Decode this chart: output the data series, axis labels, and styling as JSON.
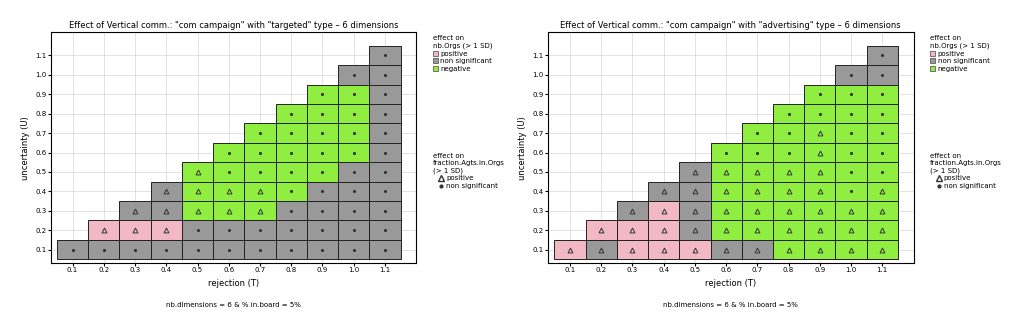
{
  "panels": [
    {
      "title": "Effect of Vertical comm.: \"com campaign\" with \"targeted\" type – 6 dimensions",
      "cells": [
        {
          "T": 0.1,
          "U": 0.1,
          "color": "gray",
          "marker": "dot"
        },
        {
          "T": 0.2,
          "U": 0.1,
          "color": "gray",
          "marker": "dot"
        },
        {
          "T": 0.2,
          "U": 0.2,
          "color": "pink",
          "marker": "triangle"
        },
        {
          "T": 0.3,
          "U": 0.1,
          "color": "gray",
          "marker": "dot"
        },
        {
          "T": 0.3,
          "U": 0.2,
          "color": "pink",
          "marker": "triangle"
        },
        {
          "T": 0.3,
          "U": 0.3,
          "color": "gray",
          "marker": "triangle"
        },
        {
          "T": 0.4,
          "U": 0.1,
          "color": "gray",
          "marker": "dot"
        },
        {
          "T": 0.4,
          "U": 0.2,
          "color": "pink",
          "marker": "triangle"
        },
        {
          "T": 0.4,
          "U": 0.3,
          "color": "gray",
          "marker": "triangle"
        },
        {
          "T": 0.4,
          "U": 0.4,
          "color": "gray",
          "marker": "triangle"
        },
        {
          "T": 0.5,
          "U": 0.1,
          "color": "gray",
          "marker": "dot"
        },
        {
          "T": 0.5,
          "U": 0.2,
          "color": "gray",
          "marker": "dot"
        },
        {
          "T": 0.5,
          "U": 0.3,
          "color": "green",
          "marker": "triangle"
        },
        {
          "T": 0.5,
          "U": 0.4,
          "color": "green",
          "marker": "triangle"
        },
        {
          "T": 0.5,
          "U": 0.5,
          "color": "green",
          "marker": "triangle"
        },
        {
          "T": 0.6,
          "U": 0.1,
          "color": "gray",
          "marker": "dot"
        },
        {
          "T": 0.6,
          "U": 0.2,
          "color": "gray",
          "marker": "dot"
        },
        {
          "T": 0.6,
          "U": 0.3,
          "color": "green",
          "marker": "triangle"
        },
        {
          "T": 0.6,
          "U": 0.4,
          "color": "green",
          "marker": "triangle"
        },
        {
          "T": 0.6,
          "U": 0.5,
          "color": "green",
          "marker": "dot"
        },
        {
          "T": 0.6,
          "U": 0.6,
          "color": "green",
          "marker": "dot"
        },
        {
          "T": 0.7,
          "U": 0.1,
          "color": "gray",
          "marker": "dot"
        },
        {
          "T": 0.7,
          "U": 0.2,
          "color": "gray",
          "marker": "dot"
        },
        {
          "T": 0.7,
          "U": 0.3,
          "color": "green",
          "marker": "triangle"
        },
        {
          "T": 0.7,
          "U": 0.4,
          "color": "green",
          "marker": "triangle"
        },
        {
          "T": 0.7,
          "U": 0.5,
          "color": "green",
          "marker": "dot"
        },
        {
          "T": 0.7,
          "U": 0.6,
          "color": "green",
          "marker": "dot"
        },
        {
          "T": 0.7,
          "U": 0.7,
          "color": "green",
          "marker": "dot"
        },
        {
          "T": 0.8,
          "U": 0.1,
          "color": "gray",
          "marker": "dot"
        },
        {
          "T": 0.8,
          "U": 0.2,
          "color": "gray",
          "marker": "dot"
        },
        {
          "T": 0.8,
          "U": 0.3,
          "color": "gray",
          "marker": "dot"
        },
        {
          "T": 0.8,
          "U": 0.4,
          "color": "green",
          "marker": "dot"
        },
        {
          "T": 0.8,
          "U": 0.5,
          "color": "green",
          "marker": "dot"
        },
        {
          "T": 0.8,
          "U": 0.6,
          "color": "green",
          "marker": "dot"
        },
        {
          "T": 0.8,
          "U": 0.7,
          "color": "green",
          "marker": "dot"
        },
        {
          "T": 0.8,
          "U": 0.8,
          "color": "green",
          "marker": "dot"
        },
        {
          "T": 0.9,
          "U": 0.1,
          "color": "gray",
          "marker": "dot"
        },
        {
          "T": 0.9,
          "U": 0.2,
          "color": "gray",
          "marker": "dot"
        },
        {
          "T": 0.9,
          "U": 0.3,
          "color": "gray",
          "marker": "dot"
        },
        {
          "T": 0.9,
          "U": 0.4,
          "color": "gray",
          "marker": "dot"
        },
        {
          "T": 0.9,
          "U": 0.5,
          "color": "green",
          "marker": "dot"
        },
        {
          "T": 0.9,
          "U": 0.6,
          "color": "green",
          "marker": "dot"
        },
        {
          "T": 0.9,
          "U": 0.7,
          "color": "green",
          "marker": "dot"
        },
        {
          "T": 0.9,
          "U": 0.8,
          "color": "green",
          "marker": "dot"
        },
        {
          "T": 0.9,
          "U": 0.9,
          "color": "green",
          "marker": "dot"
        },
        {
          "T": 1.0,
          "U": 0.1,
          "color": "gray",
          "marker": "dot"
        },
        {
          "T": 1.0,
          "U": 0.2,
          "color": "gray",
          "marker": "dot"
        },
        {
          "T": 1.0,
          "U": 0.3,
          "color": "gray",
          "marker": "dot"
        },
        {
          "T": 1.0,
          "U": 0.4,
          "color": "gray",
          "marker": "dot"
        },
        {
          "T": 1.0,
          "U": 0.5,
          "color": "gray",
          "marker": "dot"
        },
        {
          "T": 1.0,
          "U": 0.6,
          "color": "green",
          "marker": "dot"
        },
        {
          "T": 1.0,
          "U": 0.7,
          "color": "green",
          "marker": "dot"
        },
        {
          "T": 1.0,
          "U": 0.8,
          "color": "green",
          "marker": "dot"
        },
        {
          "T": 1.0,
          "U": 0.9,
          "color": "green",
          "marker": "dot"
        },
        {
          "T": 1.0,
          "U": 1.0,
          "color": "gray",
          "marker": "dot"
        },
        {
          "T": 1.1,
          "U": 0.1,
          "color": "gray",
          "marker": "dot"
        },
        {
          "T": 1.1,
          "U": 0.2,
          "color": "gray",
          "marker": "dot"
        },
        {
          "T": 1.1,
          "U": 0.3,
          "color": "gray",
          "marker": "dot"
        },
        {
          "T": 1.1,
          "U": 0.4,
          "color": "gray",
          "marker": "dot"
        },
        {
          "T": 1.1,
          "U": 0.5,
          "color": "gray",
          "marker": "dot"
        },
        {
          "T": 1.1,
          "U": 0.6,
          "color": "gray",
          "marker": "dot"
        },
        {
          "T": 1.1,
          "U": 0.7,
          "color": "gray",
          "marker": "dot"
        },
        {
          "T": 1.1,
          "U": 0.8,
          "color": "gray",
          "marker": "dot"
        },
        {
          "T": 1.1,
          "U": 0.9,
          "color": "gray",
          "marker": "dot"
        },
        {
          "T": 1.1,
          "U": 1.0,
          "color": "gray",
          "marker": "dot"
        },
        {
          "T": 1.1,
          "U": 1.1,
          "color": "gray",
          "marker": "dot"
        }
      ]
    },
    {
      "title": "Effect of Vertical comm.: \"com campaign\" with \"advertising\" type – 6 dimensions",
      "cells": [
        {
          "T": 0.1,
          "U": 0.1,
          "color": "pink",
          "marker": "triangle"
        },
        {
          "T": 0.2,
          "U": 0.1,
          "color": "gray",
          "marker": "triangle"
        },
        {
          "T": 0.2,
          "U": 0.2,
          "color": "pink",
          "marker": "triangle"
        },
        {
          "T": 0.3,
          "U": 0.1,
          "color": "pink",
          "marker": "triangle"
        },
        {
          "T": 0.3,
          "U": 0.2,
          "color": "pink",
          "marker": "triangle"
        },
        {
          "T": 0.3,
          "U": 0.3,
          "color": "gray",
          "marker": "triangle"
        },
        {
          "T": 0.4,
          "U": 0.1,
          "color": "pink",
          "marker": "triangle"
        },
        {
          "T": 0.4,
          "U": 0.2,
          "color": "pink",
          "marker": "triangle"
        },
        {
          "T": 0.4,
          "U": 0.3,
          "color": "pink",
          "marker": "triangle"
        },
        {
          "T": 0.4,
          "U": 0.4,
          "color": "gray",
          "marker": "triangle"
        },
        {
          "T": 0.5,
          "U": 0.1,
          "color": "pink",
          "marker": "triangle"
        },
        {
          "T": 0.5,
          "U": 0.2,
          "color": "gray",
          "marker": "triangle"
        },
        {
          "T": 0.5,
          "U": 0.3,
          "color": "gray",
          "marker": "triangle"
        },
        {
          "T": 0.5,
          "U": 0.4,
          "color": "gray",
          "marker": "triangle"
        },
        {
          "T": 0.5,
          "U": 0.5,
          "color": "gray",
          "marker": "triangle"
        },
        {
          "T": 0.6,
          "U": 0.1,
          "color": "gray",
          "marker": "triangle"
        },
        {
          "T": 0.6,
          "U": 0.2,
          "color": "green",
          "marker": "triangle"
        },
        {
          "T": 0.6,
          "U": 0.3,
          "color": "green",
          "marker": "triangle"
        },
        {
          "T": 0.6,
          "U": 0.4,
          "color": "green",
          "marker": "triangle"
        },
        {
          "T": 0.6,
          "U": 0.5,
          "color": "green",
          "marker": "triangle"
        },
        {
          "T": 0.6,
          "U": 0.6,
          "color": "green",
          "marker": "dot"
        },
        {
          "T": 0.7,
          "U": 0.1,
          "color": "gray",
          "marker": "triangle"
        },
        {
          "T": 0.7,
          "U": 0.2,
          "color": "green",
          "marker": "triangle"
        },
        {
          "T": 0.7,
          "U": 0.3,
          "color": "green",
          "marker": "triangle"
        },
        {
          "T": 0.7,
          "U": 0.4,
          "color": "green",
          "marker": "triangle"
        },
        {
          "T": 0.7,
          "U": 0.5,
          "color": "green",
          "marker": "triangle"
        },
        {
          "T": 0.7,
          "U": 0.6,
          "color": "green",
          "marker": "dot"
        },
        {
          "T": 0.7,
          "U": 0.7,
          "color": "green",
          "marker": "dot"
        },
        {
          "T": 0.8,
          "U": 0.1,
          "color": "green",
          "marker": "triangle"
        },
        {
          "T": 0.8,
          "U": 0.2,
          "color": "green",
          "marker": "triangle"
        },
        {
          "T": 0.8,
          "U": 0.3,
          "color": "green",
          "marker": "triangle"
        },
        {
          "T": 0.8,
          "U": 0.4,
          "color": "green",
          "marker": "triangle"
        },
        {
          "T": 0.8,
          "U": 0.5,
          "color": "green",
          "marker": "triangle"
        },
        {
          "T": 0.8,
          "U": 0.6,
          "color": "green",
          "marker": "dot"
        },
        {
          "T": 0.8,
          "U": 0.7,
          "color": "green",
          "marker": "dot"
        },
        {
          "T": 0.8,
          "U": 0.8,
          "color": "green",
          "marker": "dot"
        },
        {
          "T": 0.9,
          "U": 0.1,
          "color": "green",
          "marker": "triangle"
        },
        {
          "T": 0.9,
          "U": 0.2,
          "color": "green",
          "marker": "triangle"
        },
        {
          "T": 0.9,
          "U": 0.3,
          "color": "green",
          "marker": "triangle"
        },
        {
          "T": 0.9,
          "U": 0.4,
          "color": "green",
          "marker": "triangle"
        },
        {
          "T": 0.9,
          "U": 0.5,
          "color": "green",
          "marker": "triangle"
        },
        {
          "T": 0.9,
          "U": 0.6,
          "color": "green",
          "marker": "triangle"
        },
        {
          "T": 0.9,
          "U": 0.7,
          "color": "green",
          "marker": "triangle"
        },
        {
          "T": 0.9,
          "U": 0.8,
          "color": "green",
          "marker": "dot"
        },
        {
          "T": 0.9,
          "U": 0.9,
          "color": "green",
          "marker": "dot"
        },
        {
          "T": 1.0,
          "U": 0.1,
          "color": "green",
          "marker": "triangle"
        },
        {
          "T": 1.0,
          "U": 0.2,
          "color": "green",
          "marker": "triangle"
        },
        {
          "T": 1.0,
          "U": 0.3,
          "color": "green",
          "marker": "triangle"
        },
        {
          "T": 1.0,
          "U": 0.4,
          "color": "green",
          "marker": "dot"
        },
        {
          "T": 1.0,
          "U": 0.5,
          "color": "green",
          "marker": "dot"
        },
        {
          "T": 1.0,
          "U": 0.6,
          "color": "green",
          "marker": "dot"
        },
        {
          "T": 1.0,
          "U": 0.7,
          "color": "green",
          "marker": "dot"
        },
        {
          "T": 1.0,
          "U": 0.8,
          "color": "green",
          "marker": "dot"
        },
        {
          "T": 1.0,
          "U": 0.9,
          "color": "green",
          "marker": "dot"
        },
        {
          "T": 1.0,
          "U": 1.0,
          "color": "gray",
          "marker": "dot"
        },
        {
          "T": 1.1,
          "U": 0.1,
          "color": "green",
          "marker": "triangle"
        },
        {
          "T": 1.1,
          "U": 0.2,
          "color": "green",
          "marker": "triangle"
        },
        {
          "T": 1.1,
          "U": 0.3,
          "color": "green",
          "marker": "triangle"
        },
        {
          "T": 1.1,
          "U": 0.4,
          "color": "green",
          "marker": "triangle"
        },
        {
          "T": 1.1,
          "U": 0.5,
          "color": "green",
          "marker": "dot"
        },
        {
          "T": 1.1,
          "U": 0.6,
          "color": "green",
          "marker": "dot"
        },
        {
          "T": 1.1,
          "U": 0.7,
          "color": "green",
          "marker": "dot"
        },
        {
          "T": 1.1,
          "U": 0.8,
          "color": "green",
          "marker": "dot"
        },
        {
          "T": 1.1,
          "U": 0.9,
          "color": "green",
          "marker": "dot"
        },
        {
          "T": 1.1,
          "U": 1.0,
          "color": "gray",
          "marker": "dot"
        },
        {
          "T": 1.1,
          "U": 1.1,
          "color": "gray",
          "marker": "dot"
        }
      ]
    }
  ],
  "color_map": {
    "pink": "#f2b9c4",
    "gray": "#999999",
    "green": "#90ee40"
  },
  "tick_values": [
    0.1,
    0.2,
    0.3,
    0.4,
    0.5,
    0.6,
    0.7,
    0.8,
    0.9,
    1.0,
    1.1
  ],
  "xlabel": "rejection (T)",
  "ylabel": "uncertainty (U)",
  "footnote": "nb.dimensions = 6 & % in.board = 5%",
  "cell_size": 0.1,
  "legend1_title": "effect on\nnb.Orgs (> 1 SD)",
  "legend1_items": [
    {
      "label": "positive",
      "color": "#f2b9c4"
    },
    {
      "label": "non significant",
      "color": "#999999"
    },
    {
      "label": "negative",
      "color": "#90ee40"
    }
  ],
  "legend2_title": "effect on\nfraction.Agts.in.Orgs\n(> 1 SD)",
  "legend2_items": [
    {
      "label": "positive",
      "marker": "triangle"
    },
    {
      "label": "non significant",
      "marker": "dot"
    }
  ]
}
